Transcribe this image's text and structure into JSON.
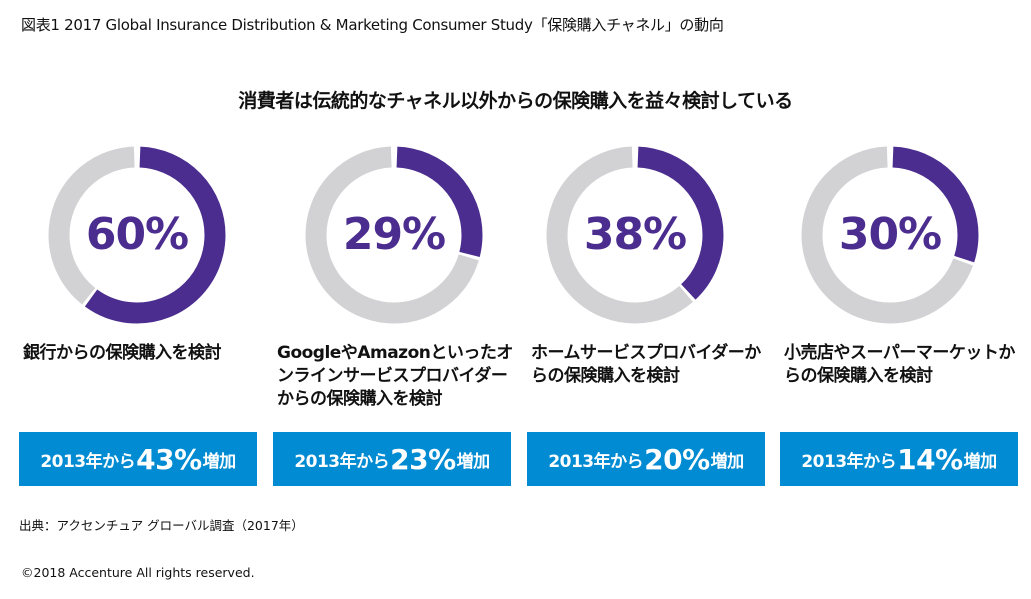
{
  "title": "図表1  2017 Global Insurance Distribution & Marketing Consumer Study「保険購入チャネル」の動向",
  "chart_data": {
    "type": "pie",
    "title": "消費者は伝統的なチャネル以外からの保険購入を益々検討している",
    "colors": {
      "value": "#4b2d8f",
      "rest": "#d2d2d4",
      "badge": "#008bd2"
    },
    "items": [
      {
        "value": 60,
        "value_label": "60%",
        "label": "銀行からの保険購入を検討",
        "badge_prefix": "2013年から",
        "badge_value": "43%",
        "badge_suffix": "増加"
      },
      {
        "value": 29,
        "value_label": "29%",
        "label": "GoogleやAmazonといったオンラインサービスプロバイダーからの保険購入を検討",
        "badge_prefix": "2013年から",
        "badge_value": "23%",
        "badge_suffix": "増加"
      },
      {
        "value": 38,
        "value_label": "38%",
        "label": "ホームサービスプロバイダーからの保険購入を検討",
        "badge_prefix": "2013年から",
        "badge_value": "20%",
        "badge_suffix": "増加"
      },
      {
        "value": 30,
        "value_label": "30%",
        "label": "小売店やスーパーマーケットからの保険購入を検討",
        "badge_prefix": "2013年から",
        "badge_value": "14%",
        "badge_suffix": "増加"
      }
    ]
  },
  "source": "出典：アクセンチュア グローバル調査（2017年）",
  "copyright": "©2018 Accenture All rights reserved."
}
